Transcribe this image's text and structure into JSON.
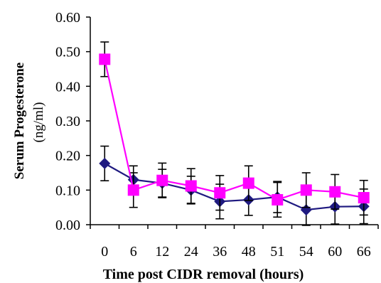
{
  "chart_data": {
    "type": "line",
    "xlabel": "Time post CIDR removal (hours)",
    "ylabel": "Serum Progesterone",
    "ylabel_unit": "(ng/ml)",
    "categories": [
      "0",
      "6",
      "12",
      "24",
      "36",
      "48",
      "51",
      "54",
      "60",
      "66"
    ],
    "ylim": [
      0,
      0.6
    ],
    "yticks": [
      "0.00",
      "0.10",
      "0.20",
      "0.30",
      "0.40",
      "0.50",
      "0.60"
    ],
    "ytick_values": [
      0,
      0.1,
      0.2,
      0.3,
      0.4,
      0.5,
      0.6
    ],
    "grid": false,
    "series": [
      {
        "color": "#1f1a80",
        "marker": "diamond",
        "values": [
          0.177,
          0.13,
          0.12,
          0.1,
          0.067,
          0.072,
          0.08,
          0.043,
          0.052,
          0.053
        ],
        "errors": [
          0.05,
          0.04,
          0.04,
          0.04,
          0.05,
          0.045,
          0.045,
          0.045,
          0.05,
          0.05
        ]
      },
      {
        "color": "#ff00ff",
        "marker": "square",
        "values": [
          0.478,
          0.1,
          0.128,
          0.112,
          0.092,
          0.12,
          0.072,
          0.1,
          0.095,
          0.078
        ],
        "errors": [
          0.05,
          0.05,
          0.05,
          0.05,
          0.05,
          0.05,
          0.05,
          0.05,
          0.05,
          0.05
        ]
      }
    ]
  }
}
